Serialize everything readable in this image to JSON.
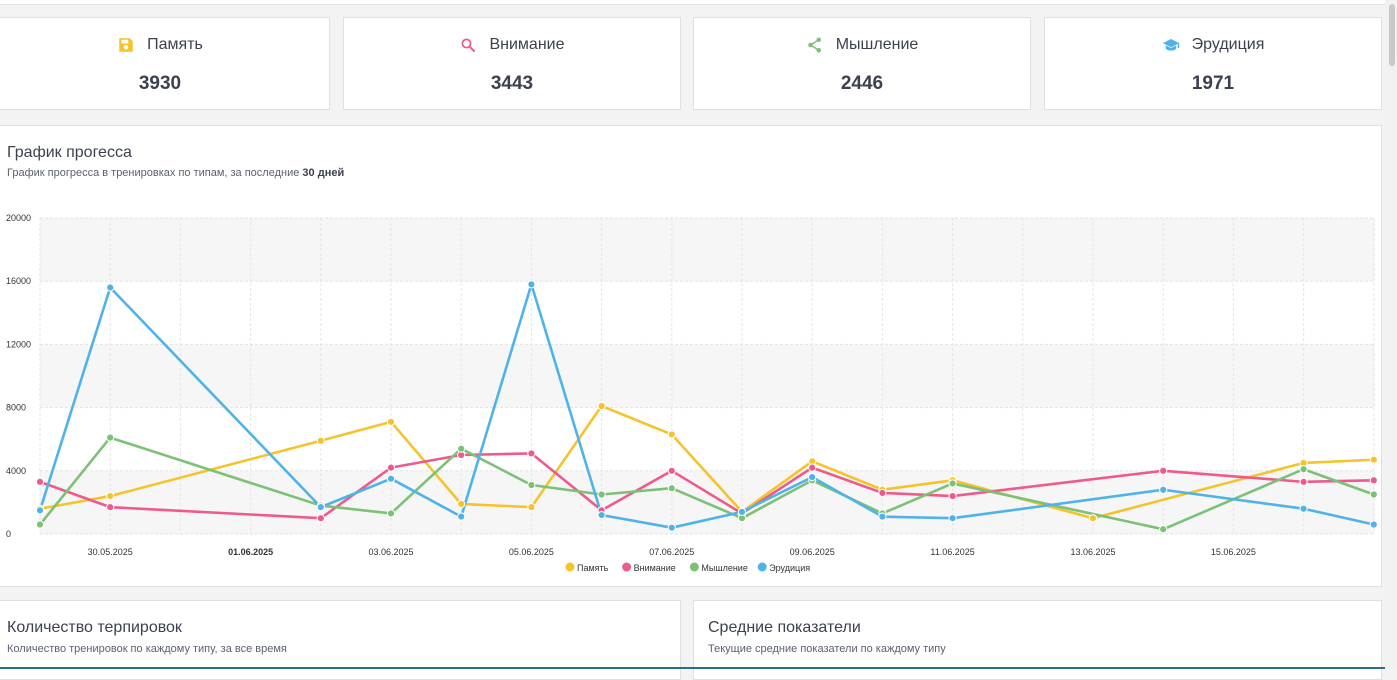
{
  "stats": [
    {
      "label": "Память",
      "value": "3930",
      "icon": "floppy-disk-icon",
      "color": "#f5c32c"
    },
    {
      "label": "Внимание",
      "value": "3443",
      "icon": "search-icon",
      "color": "#ee5a8c"
    },
    {
      "label": "Мышление",
      "value": "2446",
      "icon": "share-icon",
      "color": "#7cc176"
    },
    {
      "label": "Эрудиция",
      "value": "1971",
      "icon": "graduation-cap-icon",
      "color": "#4fb3ea"
    }
  ],
  "progress": {
    "title": "График прогесса",
    "subtitle_prefix": "График прогресса в тренировках по типам, за последние ",
    "subtitle_bold": "30 дней"
  },
  "counts_panel": {
    "title": "Количество терпировок",
    "subtitle": "Количество тренировок по каждому типу, за все время"
  },
  "averages_panel": {
    "title": "Средние показатели",
    "subtitle": "Текущие средние показатели по каждому типу"
  },
  "chart_data": {
    "type": "line",
    "ylim": [
      0,
      20000
    ],
    "yticks": [
      "20000",
      "16000",
      "12000",
      "8000",
      "4000",
      "0"
    ],
    "xtick_labels": [
      {
        "x": 1,
        "label": "30.05.2025",
        "bold": false
      },
      {
        "x": 3,
        "label": "01.06.2025",
        "bold": true
      },
      {
        "x": 5,
        "label": "03.06.2025",
        "bold": false
      },
      {
        "x": 7,
        "label": "05.06.2025",
        "bold": false
      },
      {
        "x": 9,
        "label": "07.06.2025",
        "bold": false
      },
      {
        "x": 11,
        "label": "09.06.2025",
        "bold": false
      },
      {
        "x": 13,
        "label": "11.06.2025",
        "bold": false
      },
      {
        "x": 15,
        "label": "13.06.2025",
        "bold": false
      },
      {
        "x": 17,
        "label": "15.06.2025",
        "bold": false
      }
    ],
    "grid": true,
    "legend": "bottom",
    "series": [
      {
        "name": "Память",
        "color": "#f5c32c",
        "points": [
          [
            0,
            1600
          ],
          [
            1,
            2400
          ],
          [
            4,
            5900
          ],
          [
            5,
            7100
          ],
          [
            6,
            1900
          ],
          [
            7,
            1700
          ],
          [
            8,
            8100
          ],
          [
            9,
            6300
          ],
          [
            10,
            1400
          ],
          [
            11,
            4600
          ],
          [
            12,
            2800
          ],
          [
            13,
            3400
          ],
          [
            15,
            1000
          ],
          [
            18,
            4500
          ],
          [
            19,
            4700
          ]
        ]
      },
      {
        "name": "Внимание",
        "color": "#ee5a8c",
        "points": [
          [
            0,
            3300
          ],
          [
            1,
            1700
          ],
          [
            4,
            1000
          ],
          [
            5,
            4200
          ],
          [
            6,
            5000
          ],
          [
            7,
            5100
          ],
          [
            8,
            1500
          ],
          [
            9,
            4000
          ],
          [
            10,
            1300
          ],
          [
            11,
            4200
          ],
          [
            12,
            2600
          ],
          [
            13,
            2400
          ],
          [
            16,
            4000
          ],
          [
            18,
            3300
          ],
          [
            19,
            3400
          ]
        ]
      },
      {
        "name": "Мышление",
        "color": "#7cc176",
        "points": [
          [
            0,
            600
          ],
          [
            1,
            6100
          ],
          [
            4,
            1800
          ],
          [
            5,
            1300
          ],
          [
            6,
            5400
          ],
          [
            7,
            3100
          ],
          [
            8,
            2500
          ],
          [
            9,
            2900
          ],
          [
            10,
            1000
          ],
          [
            11,
            3400
          ],
          [
            12,
            1300
          ],
          [
            13,
            3200
          ],
          [
            16,
            300
          ],
          [
            18,
            4100
          ],
          [
            19,
            2500
          ]
        ]
      },
      {
        "name": "Эрудиция",
        "color": "#4fb3ea",
        "points": [
          [
            0,
            1500
          ],
          [
            1,
            15600
          ],
          [
            4,
            1700
          ],
          [
            5,
            3500
          ],
          [
            6,
            1100
          ],
          [
            7,
            15800
          ],
          [
            8,
            1200
          ],
          [
            9,
            400
          ],
          [
            10,
            1400
          ],
          [
            11,
            3600
          ],
          [
            12,
            1100
          ],
          [
            13,
            1000
          ],
          [
            16,
            2800
          ],
          [
            18,
            1600
          ],
          [
            19,
            600
          ]
        ]
      }
    ]
  }
}
